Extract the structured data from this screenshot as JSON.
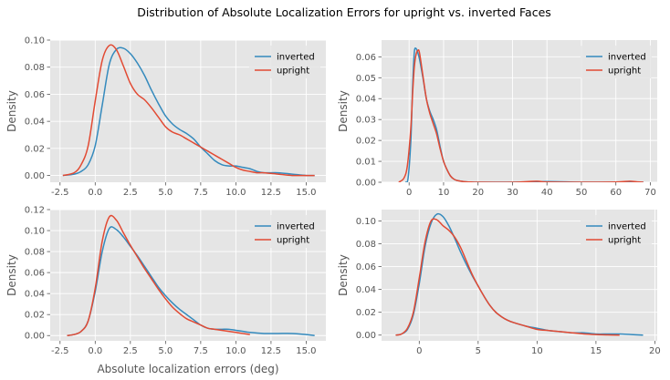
{
  "title": "Distribution of Absolute Localization Errors for upright vs. inverted Faces",
  "colors": {
    "inverted": "#348ABD",
    "upright": "#E24A33",
    "panel_bg": "#E5E5E5",
    "grid": "#FFFFFF"
  },
  "chart_data": [
    {
      "type": "line",
      "title": "",
      "xlabel": "",
      "ylabel": "Density",
      "xlim": [
        -3.2,
        16.4
      ],
      "ylim": [
        -0.005,
        0.1
      ],
      "xticks": [
        "-2.5",
        "0.0",
        "2.5",
        "5.0",
        "7.5",
        "10.0",
        "12.5",
        "15.0"
      ],
      "xtick_values": [
        -2.5,
        0,
        2.5,
        5,
        7.5,
        10,
        12.5,
        15
      ],
      "yticks": [
        "0.00",
        "0.02",
        "0.04",
        "0.06",
        "0.08",
        "0.10"
      ],
      "ytick_values": [
        0,
        0.02,
        0.04,
        0.06,
        0.08,
        0.1
      ],
      "grid": true,
      "legend": "top-right",
      "series": [
        {
          "name": "inverted",
          "color": "#348ABD",
          "x": [
            -2.3,
            -1.5,
            -1,
            -0.5,
            0,
            0.5,
            1,
            1.5,
            2,
            2.5,
            3,
            3.5,
            4,
            4.5,
            5,
            5.5,
            6,
            6.5,
            7,
            7.5,
            8,
            8.5,
            9,
            9.5,
            10,
            10.5,
            11,
            11.5,
            12,
            13,
            14,
            15,
            15.6
          ],
          "y": [
            0.0,
            0.001,
            0.003,
            0.008,
            0.022,
            0.052,
            0.082,
            0.093,
            0.094,
            0.09,
            0.083,
            0.074,
            0.063,
            0.053,
            0.044,
            0.038,
            0.034,
            0.031,
            0.027,
            0.021,
            0.016,
            0.011,
            0.008,
            0.007,
            0.007,
            0.006,
            0.005,
            0.003,
            0.002,
            0.002,
            0.001,
            0.0,
            0.0
          ]
        },
        {
          "name": "upright",
          "color": "#E24A33",
          "x": [
            -2.3,
            -1.5,
            -1,
            -0.5,
            0,
            0.5,
            1,
            1.5,
            2,
            2.5,
            3,
            3.5,
            4,
            4.5,
            5,
            5.5,
            6,
            6.5,
            7,
            7.5,
            8,
            8.5,
            9,
            9.5,
            10,
            10.5,
            11,
            11.5,
            12,
            13,
            14,
            15,
            15.6
          ],
          "y": [
            0.0,
            0.002,
            0.008,
            0.022,
            0.055,
            0.085,
            0.096,
            0.093,
            0.081,
            0.068,
            0.06,
            0.056,
            0.05,
            0.043,
            0.036,
            0.032,
            0.03,
            0.027,
            0.024,
            0.021,
            0.018,
            0.015,
            0.012,
            0.009,
            0.006,
            0.004,
            0.003,
            0.002,
            0.002,
            0.001,
            0.0,
            0.0,
            0.0
          ]
        }
      ]
    },
    {
      "type": "line",
      "title": "",
      "xlabel": "",
      "ylabel": "Density",
      "xlim": [
        -8,
        72
      ],
      "ylim": [
        0,
        0.068
      ],
      "xticks": [
        "0",
        "10",
        "20",
        "30",
        "40",
        "50",
        "60",
        "70"
      ],
      "xtick_values": [
        0,
        10,
        20,
        30,
        40,
        50,
        60,
        70
      ],
      "yticks": [
        "0.00",
        "0.01",
        "0.02",
        "0.03",
        "0.04",
        "0.05",
        "0.06"
      ],
      "ytick_values": [
        0,
        0.01,
        0.02,
        0.03,
        0.04,
        0.05,
        0.06
      ],
      "grid": true,
      "legend": "top-right",
      "series": [
        {
          "name": "inverted",
          "color": "#348ABD",
          "x": [
            -1,
            -0.3,
            0.5,
            1,
            1.5,
            2,
            2.5,
            3,
            4,
            5,
            6,
            7,
            8,
            9,
            10,
            11,
            12,
            13,
            14,
            16,
            18,
            20,
            30,
            40,
            50,
            60,
            68
          ],
          "y": [
            0.0,
            0.002,
            0.02,
            0.045,
            0.062,
            0.064,
            0.062,
            0.059,
            0.05,
            0.04,
            0.034,
            0.03,
            0.025,
            0.017,
            0.01,
            0.006,
            0.003,
            0.0015,
            0.0008,
            0.0003,
            0.0001,
            0.0,
            0.0,
            0.0003,
            0.0,
            0.0,
            0.0
          ]
        },
        {
          "name": "upright",
          "color": "#E24A33",
          "x": [
            -3,
            -1.5,
            -0.5,
            0.5,
            1,
            1.5,
            2,
            2.5,
            3,
            4,
            5,
            6,
            7,
            8,
            9,
            10,
            11,
            12,
            13,
            14,
            16,
            18,
            20,
            30,
            37,
            40,
            50,
            60,
            64,
            66,
            68
          ],
          "y": [
            0.0,
            0.002,
            0.008,
            0.026,
            0.042,
            0.055,
            0.061,
            0.063,
            0.062,
            0.051,
            0.04,
            0.033,
            0.028,
            0.023,
            0.016,
            0.01,
            0.006,
            0.003,
            0.0015,
            0.0008,
            0.0003,
            0.0001,
            0.0,
            0.0,
            0.0005,
            0.0001,
            0.0,
            0.0001,
            0.0005,
            0.0002,
            0.0
          ]
        }
      ]
    },
    {
      "type": "line",
      "title": "",
      "xlabel": "Absolute localization errors (deg)",
      "ylabel": "Density",
      "xlim": [
        -3.2,
        16.4
      ],
      "ylim": [
        -0.005,
        0.12
      ],
      "xticks": [
        "-2.5",
        "0.0",
        "2.5",
        "5.0",
        "7.5",
        "10.0",
        "12.5",
        "15.0"
      ],
      "xtick_values": [
        -2.5,
        0,
        2.5,
        5,
        7.5,
        10,
        12.5,
        15
      ],
      "yticks": [
        "0.00",
        "0.02",
        "0.04",
        "0.06",
        "0.08",
        "0.10",
        "0.12"
      ],
      "ytick_values": [
        0,
        0.02,
        0.04,
        0.06,
        0.08,
        0.1,
        0.12
      ],
      "grid": true,
      "legend": "top-right",
      "series": [
        {
          "name": "inverted",
          "color": "#348ABD",
          "x": [
            -2,
            -1.5,
            -1,
            -0.5,
            0,
            0.5,
            1,
            1.5,
            2,
            2.5,
            3,
            3.5,
            4,
            4.5,
            5,
            5.5,
            6,
            6.5,
            7,
            7.5,
            8,
            8.5,
            9,
            9.5,
            10,
            10.5,
            11,
            12,
            13,
            14,
            15,
            15.6
          ],
          "y": [
            0.0,
            0.001,
            0.004,
            0.014,
            0.042,
            0.08,
            0.102,
            0.101,
            0.094,
            0.085,
            0.076,
            0.066,
            0.056,
            0.046,
            0.038,
            0.031,
            0.025,
            0.02,
            0.015,
            0.01,
            0.007,
            0.006,
            0.006,
            0.006,
            0.005,
            0.004,
            0.003,
            0.002,
            0.002,
            0.002,
            0.001,
            0.0
          ]
        },
        {
          "name": "upright",
          "color": "#E24A33",
          "x": [
            -2,
            -1.5,
            -1,
            -0.5,
            0,
            0.5,
            1,
            1.5,
            2,
            2.5,
            3,
            3.5,
            4,
            4.5,
            5,
            5.5,
            6,
            6.5,
            7,
            7.5,
            8,
            8.5,
            9,
            9.5,
            10,
            10.5,
            11
          ],
          "y": [
            0.0,
            0.001,
            0.004,
            0.014,
            0.045,
            0.09,
            0.113,
            0.11,
            0.098,
            0.086,
            0.075,
            0.064,
            0.054,
            0.044,
            0.035,
            0.027,
            0.021,
            0.016,
            0.013,
            0.01,
            0.007,
            0.006,
            0.005,
            0.004,
            0.003,
            0.002,
            0.001
          ]
        }
      ]
    },
    {
      "type": "line",
      "title": "",
      "xlabel": "",
      "ylabel": "Density",
      "xlim": [
        -3.2,
        20.2
      ],
      "ylim": [
        -0.005,
        0.11
      ],
      "xticks": [
        "0",
        "5",
        "10",
        "15",
        "20"
      ],
      "xtick_values": [
        0,
        5,
        10,
        15,
        20
      ],
      "yticks": [
        "0.00",
        "0.02",
        "0.04",
        "0.06",
        "0.08",
        "0.10"
      ],
      "ytick_values": [
        0,
        0.02,
        0.04,
        0.06,
        0.08,
        0.1
      ],
      "grid": true,
      "legend": "top-right",
      "series": [
        {
          "name": "inverted",
          "color": "#348ABD",
          "x": [
            -2,
            -1.5,
            -1,
            -0.5,
            0,
            0.5,
            1,
            1.5,
            2,
            2.5,
            3,
            3.5,
            4,
            4.5,
            5,
            5.5,
            6,
            6.5,
            7,
            7.5,
            8,
            9,
            10,
            11,
            12,
            13,
            14,
            15,
            16,
            17,
            18,
            19
          ],
          "y": [
            0.0,
            0.001,
            0.005,
            0.018,
            0.045,
            0.078,
            0.098,
            0.106,
            0.104,
            0.096,
            0.085,
            0.073,
            0.062,
            0.052,
            0.043,
            0.034,
            0.026,
            0.02,
            0.016,
            0.013,
            0.011,
            0.008,
            0.006,
            0.004,
            0.003,
            0.002,
            0.002,
            0.001,
            0.001,
            0.001,
            0.0005,
            0.0
          ]
        },
        {
          "name": "upright",
          "color": "#E24A33",
          "x": [
            -2,
            -1.5,
            -1,
            -0.5,
            0,
            0.5,
            1,
            1.5,
            2,
            2.5,
            3,
            3.5,
            4,
            4.5,
            5,
            5.5,
            6,
            6.5,
            7,
            7.5,
            8,
            9,
            10,
            11,
            12,
            13,
            14,
            15,
            16,
            17
          ],
          "y": [
            0.0,
            0.001,
            0.006,
            0.02,
            0.05,
            0.082,
            0.1,
            0.101,
            0.096,
            0.092,
            0.086,
            0.077,
            0.065,
            0.053,
            0.043,
            0.034,
            0.026,
            0.02,
            0.016,
            0.013,
            0.011,
            0.008,
            0.005,
            0.004,
            0.003,
            0.002,
            0.001,
            0.0005,
            0.0002,
            0.0
          ]
        }
      ]
    }
  ]
}
